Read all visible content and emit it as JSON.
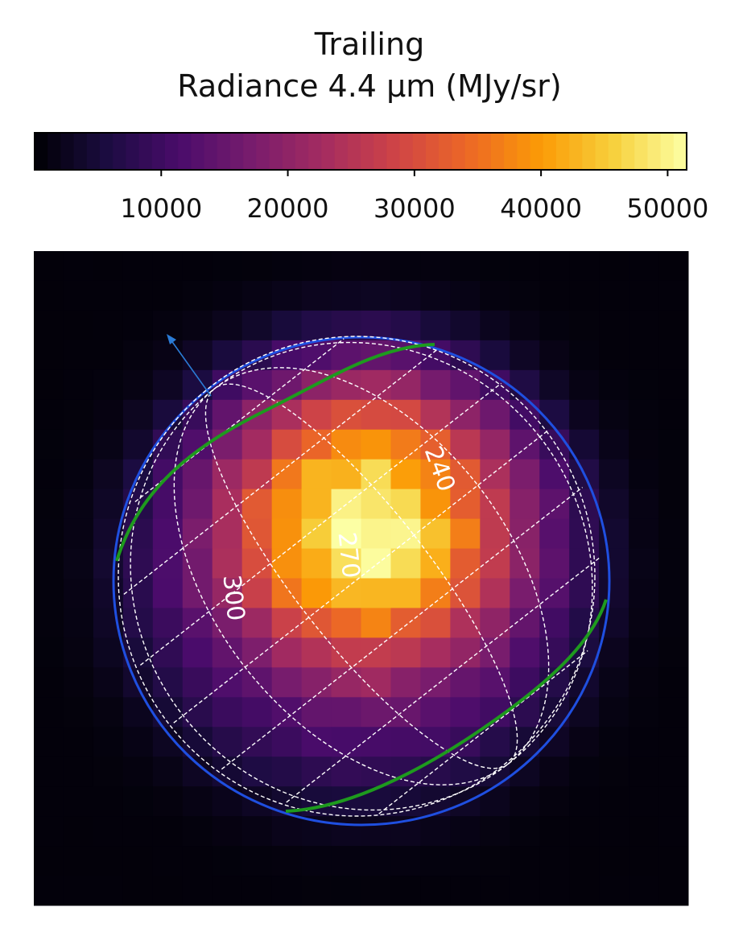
{
  "chart_data": {
    "type": "heatmap",
    "title": "Trailing",
    "colorbar": {
      "label": "Radiance 4.4 μm (MJy/sr)",
      "colormap": "inferno-like (black-purple-red-orange-yellow)",
      "range": [
        0,
        51500
      ],
      "ticks": [
        10000,
        20000,
        30000,
        40000,
        50000
      ],
      "tick_labels": [
        "10000",
        "20000",
        "30000",
        "40000",
        "50000"
      ],
      "stops": [
        "#000004",
        "#1b0c41",
        "#4a0c6b",
        "#781c6d",
        "#a52c60",
        "#cf4446",
        "#ed6925",
        "#fb9b06",
        "#f7d13d",
        "#fcffa4"
      ]
    },
    "grid_size": [
      22,
      22
    ],
    "disk": {
      "peak_value": 51000,
      "peak_pixel": [
        11,
        9
      ],
      "description_values": "radiance peaks near the disk center slightly up-right and falls toward the limb"
    },
    "grid_labels": [
      "240",
      "270",
      "300"
    ],
    "overlays": {
      "limb_color": "#1f4fe0",
      "grid_color": "#ffffff",
      "terminator_color": "#1e9a1e",
      "arrow_color": "#2b7bd6"
    }
  }
}
